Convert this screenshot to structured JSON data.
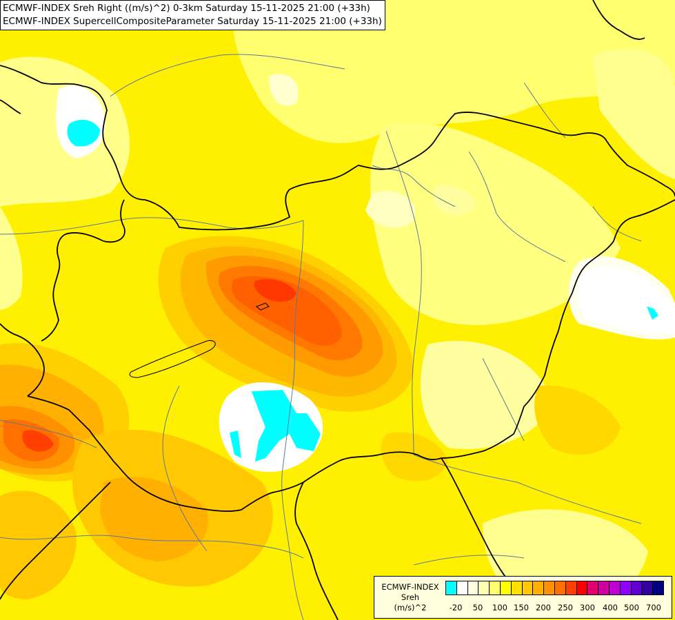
{
  "header": {
    "line1": "ECMWF-INDEX Sreh Right ((m/s)^2) 0-3km Saturday 15-11-2025 21:00 (+33h)",
    "line2": "ECMWF-INDEX SupercellCompositeParameter Saturday 15-11-2025 21:00 (+33h)"
  },
  "legend": {
    "title": "ECMWF-INDEX",
    "variable": "Sreh",
    "unit": "(m/s)^2",
    "colors": [
      "#00ffff",
      "#ffffff",
      "#ffffe0",
      "#ffffb0",
      "#ffff70",
      "#ffff00",
      "#ffe000",
      "#ffc800",
      "#ffb000",
      "#ff9000",
      "#ff7000",
      "#ff4000",
      "#ff0000",
      "#e00070",
      "#d000a0",
      "#c000d0",
      "#9000ff",
      "#6000d0",
      "#3000a0",
      "#000080"
    ],
    "ticks": [
      "-20",
      "50",
      "100",
      "150",
      "200",
      "250",
      "300",
      "400",
      "500",
      "700"
    ]
  },
  "colors": {
    "background": "#ffff00",
    "border": "#000000",
    "river": "#5a7a9a",
    "cyan": "#00ffff"
  }
}
